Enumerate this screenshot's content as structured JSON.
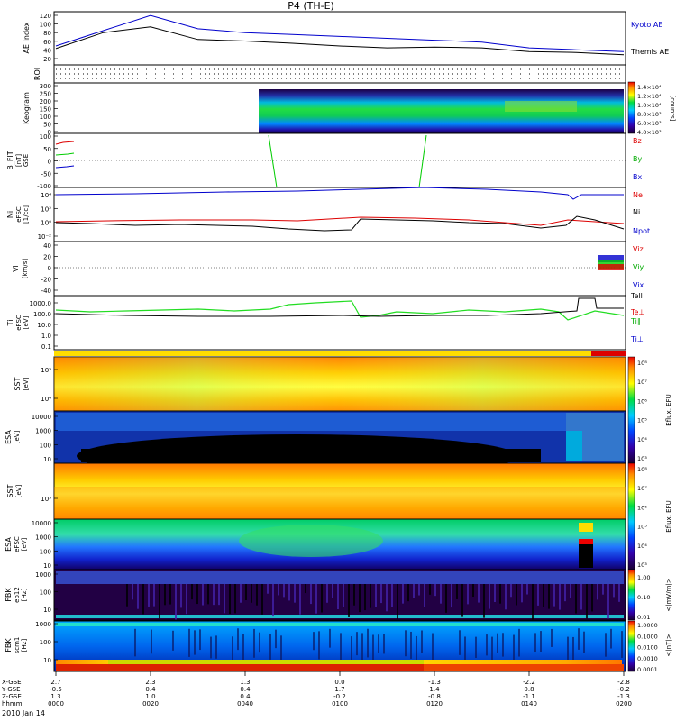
{
  "title": "P4 (TH-E)",
  "date_label": "2010 Jan 14",
  "colors": {
    "kyoto": "#0000cc",
    "themis": "#000000",
    "red": "#dd0000",
    "green": "#00cc00",
    "blue": "#0000cc",
    "black": "#000000"
  },
  "panels": {
    "ae": {
      "ylabel": "AE Index",
      "ticks": [
        "120",
        "100",
        "80",
        "60",
        "40",
        "20"
      ],
      "legend": [
        "Kyoto AE",
        "Themis AE"
      ]
    },
    "roi": {
      "ylabel": "ROI"
    },
    "keogram": {
      "ylabel": "Keogram",
      "ticks": [
        "300",
        "250",
        "200",
        "150",
        "100",
        "50",
        "0"
      ],
      "cbar_ticks": [
        "1.4×10⁴",
        "1.2×10⁴",
        "1.0×10⁴",
        "8.0×10³",
        "6.0×10³",
        "4.0×10³"
      ],
      "cbar_label": "[counts]"
    },
    "bfit": {
      "ylabel": "B_FIT",
      "ylabel2": "[nT]",
      "ylabel3": "GSE",
      "ticks": [
        "100",
        "50",
        "0",
        "-50",
        "-100"
      ],
      "legend": [
        "Bz",
        "By",
        "Bx"
      ]
    },
    "ni": {
      "ylabel": "Ni",
      "ylabel2": "eFSC",
      "ylabel3": "[1/cc]",
      "ticks": [
        "10⁴",
        "10²",
        "10⁰",
        "10⁻²"
      ],
      "legend": [
        "Ne",
        "Ni",
        "Npot"
      ]
    },
    "vi": {
      "ylabel": "Vi",
      "ylabel2": "[km/s]",
      "ticks": [
        "40",
        "20",
        "0",
        "-20",
        "-40"
      ],
      "legend": [
        "Viz",
        "Viy",
        "Vix"
      ]
    },
    "ti": {
      "ylabel": "Ti",
      "ylabel2": "eFSC",
      "ylabel3": "[eV]",
      "ticks": [
        "1000.0",
        "100.0",
        "10.0",
        "1.0",
        "0.1"
      ],
      "legend": [
        "Tell",
        "Te⊥",
        "Ti∥",
        "Ti⊥"
      ]
    },
    "sst_i": {
      "ylabel": "SST",
      "ylabel2": "[eV]",
      "ticks": [
        "10⁵",
        "10⁴"
      ]
    },
    "esa_i": {
      "ylabel": "ESA",
      "ylabel2": "[eV]",
      "ticks": [
        "10000",
        "1000",
        "100",
        "10"
      ]
    },
    "sst_e": {
      "ylabel": "SST",
      "ylabel2": "[eV]",
      "ticks": [
        "10⁵"
      ]
    },
    "esa_e": {
      "ylabel": "ESA",
      "ylabel2": "eFSC",
      "ylabel3": "[eV]",
      "ticks": [
        "10000",
        "1000",
        "100",
        "10"
      ]
    },
    "fbk1": {
      "ylabel": "FBK",
      "ylabel2": "eb12",
      "ylabel3": "[Hz]",
      "ticks": [
        "1000",
        "100",
        "10"
      ],
      "cbar_ticks": [
        "1.00",
        "0.10",
        "0.01"
      ],
      "cbar_label": "<|mV/m|>"
    },
    "fbk2": {
      "ylabel": "FBK",
      "ylabel2": "scm1",
      "ylabel3": "[Hz]",
      "ticks": [
        "1000",
        "100",
        "10"
      ],
      "cbar_ticks": [
        "1.0000",
        "0.1000",
        "0.0100",
        "0.0010",
        "0.0001"
      ],
      "cbar_label": "<|nT|>"
    }
  },
  "flux_cbar": {
    "ion": {
      "ticks": [
        "10⁸",
        "10⁷",
        "10⁶",
        "10⁵",
        "10⁴",
        "10³"
      ],
      "label": "Eflux, EFU"
    },
    "elec": {
      "ticks": [
        "10⁸",
        "10⁷",
        "10⁶",
        "10⁵",
        "10⁴",
        "10³"
      ],
      "label": "Eflux, EFU"
    }
  },
  "x_axis": {
    "row_labels": [
      "X-GSE",
      "Y-GSE",
      "Z-GSE",
      "hhmm"
    ],
    "columns": [
      {
        "x": "2.7",
        "y": "-0.5",
        "z": "1.3",
        "t": "0000"
      },
      {
        "x": "2.3",
        "y": "0.4",
        "z": "1.0",
        "t": "0020"
      },
      {
        "x": "1.3",
        "y": "0.4",
        "z": "0.4",
        "t": "0040"
      },
      {
        "x": "0.0",
        "y": "1.7",
        "z": "-0.2",
        "t": "0100"
      },
      {
        "x": "-1.3",
        "y": "1.4",
        "z": "-0.8",
        "t": "0120"
      },
      {
        "x": "-2.2",
        "y": "0.8",
        "z": "-1.1",
        "t": "0140"
      },
      {
        "x": "-2.8",
        "y": "-0.2",
        "z": "-1.3",
        "t": "0200"
      }
    ]
  },
  "chart_data": {
    "type": "line",
    "title": "P4 (TH-E)",
    "x": [
      "0000",
      "0010",
      "0020",
      "0030",
      "0040",
      "0050",
      "0100",
      "0110",
      "0120",
      "0130",
      "0140",
      "0150",
      "0200"
    ],
    "xlabel": "hhmm",
    "ylabel": "AE Index",
    "ylim": [
      0,
      130
    ],
    "series": [
      {
        "name": "Kyoto AE",
        "values": [
          45,
          85,
          125,
          90,
          80,
          75,
          70,
          65,
          60,
          55,
          40,
          35,
          30
        ]
      },
      {
        "name": "Themis AE",
        "values": [
          38,
          80,
          95,
          62,
          58,
          52,
          45,
          40,
          42,
          40,
          30,
          28,
          22
        ]
      }
    ]
  }
}
